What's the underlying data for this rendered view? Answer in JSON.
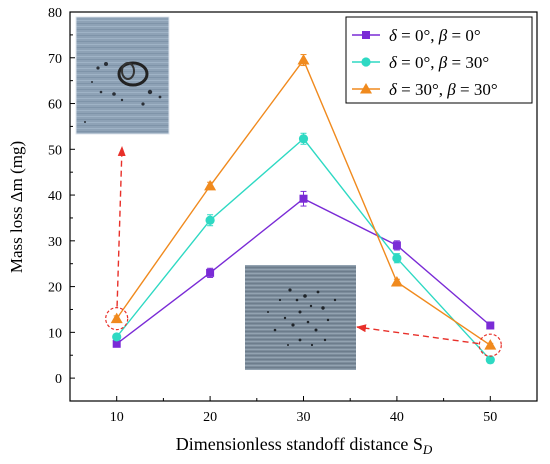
{
  "chart_data": {
    "type": "line",
    "xlabel": "Dimensionless standoff distance S",
    "xlabel_sub": "D",
    "ylabel": "Mass loss Δm (mg)",
    "x": [
      10,
      20,
      30,
      40,
      50
    ],
    "xticks": [
      "10",
      "20",
      "30",
      "40",
      "50"
    ],
    "yticks": [
      "0",
      "10",
      "20",
      "30",
      "40",
      "50",
      "60",
      "70",
      "80"
    ],
    "xlim": [
      5,
      55
    ],
    "ylim": [
      -5,
      80
    ],
    "grid": false,
    "legend_position": "top-right",
    "series": [
      {
        "name": "δ = 0°, β = 0°",
        "name_parts": [
          "δ",
          " = 0°, ",
          "β",
          " = 0°"
        ],
        "marker": "square",
        "color": "#7a2bd6",
        "values": [
          7.5,
          23,
          39.2,
          29,
          11.5
        ],
        "errors": [
          0.6,
          1.0,
          1.6,
          1.0,
          0.5
        ]
      },
      {
        "name": "δ = 0°, β = 30°",
        "name_parts": [
          "δ",
          " = 0°, ",
          "β",
          " = 30°"
        ],
        "marker": "circle",
        "color": "#2ed9c3",
        "values": [
          9,
          34.5,
          52.3,
          26.2,
          4
        ],
        "errors": [
          0.6,
          1.2,
          1.2,
          1.0,
          0.5
        ]
      },
      {
        "name": "δ = 30°, β = 30°",
        "name_parts": [
          "δ",
          " = 30°, ",
          "β",
          " = 30°"
        ],
        "marker": "triangle",
        "color": "#f08a1e",
        "values": [
          13,
          42,
          69.5,
          21,
          7.2
        ],
        "errors": [
          0.6,
          0.8,
          1.2,
          0.6,
          0.4
        ]
      }
    ],
    "annotations": [
      {
        "kind": "highlight-circle",
        "x": 10,
        "y": 13,
        "arrow_to": "inset-top-left"
      },
      {
        "kind": "highlight-circle",
        "x": 50,
        "y": 7.2,
        "arrow_to": "inset-bottom-center"
      }
    ],
    "colors": {
      "axis": "#000000",
      "annotation": "#e8302a"
    }
  }
}
